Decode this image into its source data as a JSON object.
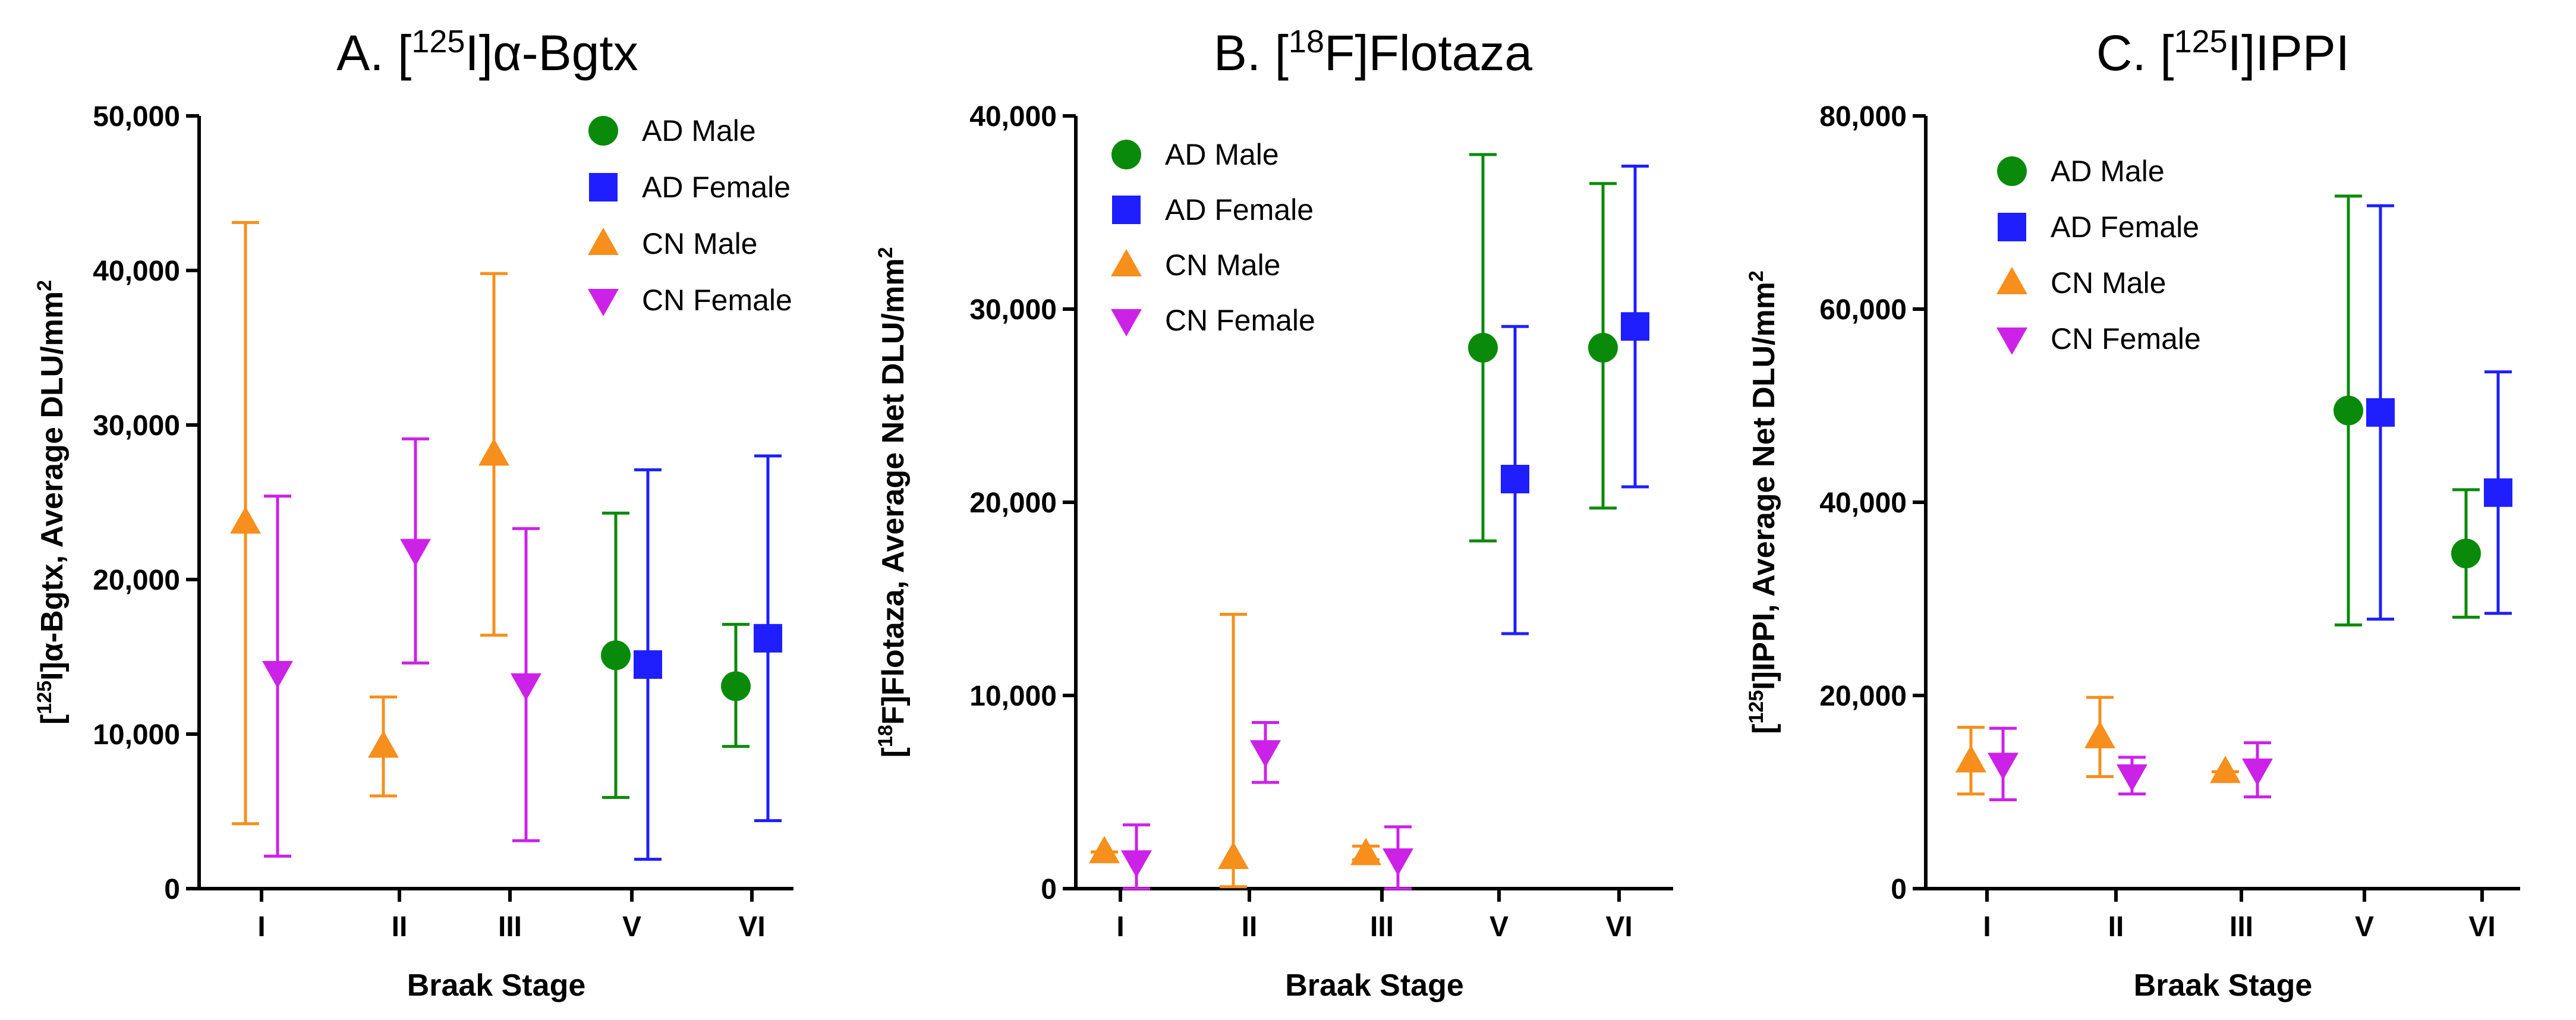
{
  "chart_data": [
    {
      "type": "scatter",
      "title": "A. [125I]α-Bgtx",
      "title_parts": {
        "prefix": "A. [",
        "superscript": "125",
        "suffix": "I]α-Bgtx"
      },
      "xlabel": "Braak Stage",
      "ylabel": "[125I]α-Bgtx, Average DLU/mm2",
      "ylabel_parts": {
        "pre": "[",
        "sup1": "125",
        "mid": "I]α-Bgtx, Average DLU/mm",
        "sup2": "2"
      },
      "categories": [
        "I",
        "II",
        "III",
        "V",
        "VI"
      ],
      "ylim": [
        0,
        50000
      ],
      "yticks": [
        0,
        10000,
        20000,
        30000,
        40000,
        50000
      ],
      "ytick_labels": [
        "0",
        "10,000",
        "20,000",
        "30,000",
        "40,000",
        "50,000"
      ],
      "legend": [
        "AD Male",
        "AD Female",
        "CN Male",
        "CN Female"
      ],
      "legend_placement": "top-right",
      "series": [
        {
          "name": "AD Male",
          "color": "#0a8a0a",
          "marker": "circle",
          "points": [
            {
              "x": "V",
              "y": 15100,
              "lo": 5900,
              "hi": 24300
            },
            {
              "x": "VI",
              "y": 13100,
              "lo": 9200,
              "hi": 17100
            }
          ]
        },
        {
          "name": "AD Female",
          "color": "#1e1eff",
          "marker": "square",
          "points": [
            {
              "x": "V",
              "y": 14500,
              "lo": 1900,
              "hi": 27100
            },
            {
              "x": "VI",
              "y": 16200,
              "lo": 4400,
              "hi": 28000
            }
          ]
        },
        {
          "name": "CN Male",
          "color": "#f68f1c",
          "marker": "triangle-up",
          "points": [
            {
              "x": "I",
              "y": 23700,
              "lo": 4200,
              "hi": 43100
            },
            {
              "x": "II",
              "y": 9200,
              "lo": 6000,
              "hi": 12400
            },
            {
              "x": "III",
              "y": 28100,
              "lo": 16400,
              "hi": 39800
            }
          ]
        },
        {
          "name": "CN Female",
          "color": "#cc22e8",
          "marker": "triangle-down",
          "points": [
            {
              "x": "I",
              "y": 14000,
              "lo": 2100,
              "hi": 25400
            },
            {
              "x": "II",
              "y": 21900,
              "lo": 14600,
              "hi": 29100
            },
            {
              "x": "III",
              "y": 13200,
              "lo": 3100,
              "hi": 23300
            }
          ]
        }
      ]
    },
    {
      "type": "scatter",
      "title": "B. [18F]Flotaza",
      "title_parts": {
        "prefix": "B. [",
        "superscript": "18",
        "suffix": "F]Flotaza"
      },
      "xlabel": "Braak Stage",
      "ylabel": "[18F]Flotaza, Average Net DLU/mm2",
      "ylabel_parts": {
        "pre": "[",
        "sup1": "18",
        "mid": "F]Flotaza, Average Net DLU/mm",
        "sup2": "2"
      },
      "categories": [
        "I",
        "II",
        "III",
        "V",
        "VI"
      ],
      "ylim": [
        0,
        40000
      ],
      "yticks": [
        0,
        10000,
        20000,
        30000,
        40000
      ],
      "ytick_labels": [
        "0",
        "10,000",
        "20,000",
        "30,000",
        "40,000"
      ],
      "legend": [
        "AD Male",
        "AD Female",
        "CN Male",
        "CN Female"
      ],
      "legend_placement": "top-left",
      "series": [
        {
          "name": "AD Male",
          "color": "#0a8a0a",
          "marker": "circle",
          "points": [
            {
              "x": "V",
              "y": 28000,
              "lo": 18000,
              "hi": 38000
            },
            {
              "x": "VI",
              "y": 28000,
              "lo": 19700,
              "hi": 36500
            }
          ]
        },
        {
          "name": "AD Female",
          "color": "#1e1eff",
          "marker": "square",
          "points": [
            {
              "x": "V",
              "y": 21200,
              "lo": 13200,
              "hi": 29100
            },
            {
              "x": "VI",
              "y": 29100,
              "lo": 20800,
              "hi": 37400
            }
          ]
        },
        {
          "name": "CN Male",
          "color": "#f68f1c",
          "marker": "triangle-up",
          "points": [
            {
              "x": "I",
              "y": 1900,
              "lo": 1900,
              "hi": 1900
            },
            {
              "x": "II",
              "y": 1600,
              "lo": 100,
              "hi": 14200
            },
            {
              "x": "III",
              "y": 1800,
              "lo": 1500,
              "hi": 2200
            }
          ]
        },
        {
          "name": "CN Female",
          "color": "#cc22e8",
          "marker": "triangle-down",
          "points": [
            {
              "x": "I",
              "y": 1400,
              "lo": 0,
              "hi": 3300
            },
            {
              "x": "II",
              "y": 7100,
              "lo": 5500,
              "hi": 8600
            },
            {
              "x": "III",
              "y": 1500,
              "lo": 0,
              "hi": 3200
            }
          ]
        }
      ]
    },
    {
      "type": "scatter",
      "title": "C. [125I]IPPI",
      "title_parts": {
        "prefix": "C. [",
        "superscript": "125",
        "suffix": "I]IPPI"
      },
      "xlabel": "Braak Stage",
      "ylabel": "[125I]IPPI, Average Net DLU/mm2",
      "ylabel_parts": {
        "pre": "[",
        "sup1": "125",
        "mid": "I]IPPI, Average Net DLU/mm",
        "sup2": "2"
      },
      "categories": [
        "I",
        "II",
        "III",
        "V",
        "VI"
      ],
      "ylim": [
        0,
        80000
      ],
      "yticks": [
        0,
        20000,
        40000,
        60000,
        80000
      ],
      "ytick_labels": [
        "0",
        "20,000",
        "40,000",
        "60,000",
        "80,000"
      ],
      "legend": [
        "AD Male",
        "AD Female",
        "CN Male",
        "CN Female"
      ],
      "legend_placement": "top-left",
      "series": [
        {
          "name": "AD Male",
          "color": "#0a8a0a",
          "marker": "circle",
          "points": [
            {
              "x": "V",
              "y": 49500,
              "lo": 27300,
              "hi": 71700
            },
            {
              "x": "VI",
              "y": 34700,
              "lo": 28100,
              "hi": 41300
            }
          ]
        },
        {
          "name": "AD Female",
          "color": "#1e1eff",
          "marker": "square",
          "points": [
            {
              "x": "V",
              "y": 49300,
              "lo": 27900,
              "hi": 70700
            },
            {
              "x": "VI",
              "y": 41000,
              "lo": 28500,
              "hi": 53500
            }
          ]
        },
        {
          "name": "CN Male",
          "color": "#f68f1c",
          "marker": "triangle-up",
          "points": [
            {
              "x": "I",
              "y": 13200,
              "lo": 9800,
              "hi": 16700
            },
            {
              "x": "II",
              "y": 15700,
              "lo": 11600,
              "hi": 19800
            },
            {
              "x": "III",
              "y": 12100,
              "lo": 12100,
              "hi": 12100
            }
          ]
        },
        {
          "name": "CN Female",
          "color": "#cc22e8",
          "marker": "triangle-down",
          "points": [
            {
              "x": "I",
              "y": 12900,
              "lo": 9200,
              "hi": 16600
            },
            {
              "x": "II",
              "y": 11700,
              "lo": 9800,
              "hi": 13600
            },
            {
              "x": "III",
              "y": 12300,
              "lo": 9500,
              "hi": 15100
            }
          ]
        }
      ]
    }
  ]
}
